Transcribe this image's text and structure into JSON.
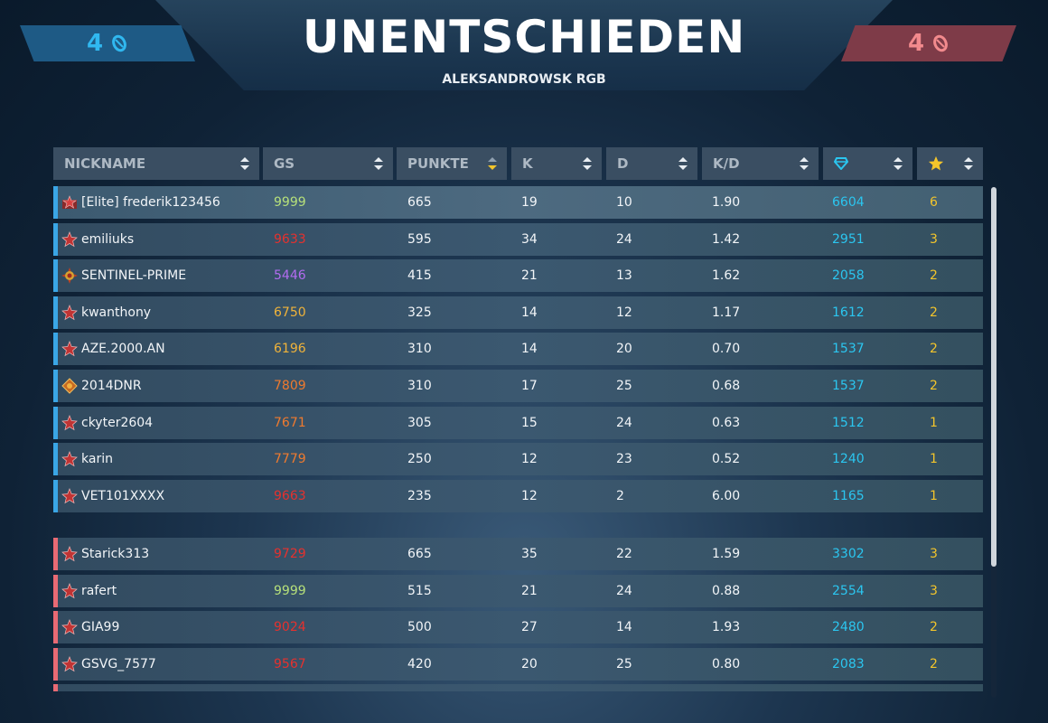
{
  "header": {
    "result": "UNENTSCHIEDEN",
    "map": "ALEKSANDROWSK RGB"
  },
  "score": {
    "blue": "4",
    "red": "4",
    "blue_color": "#30b8f0",
    "red_color": "#f28a8d",
    "icon": "flag-token-icon"
  },
  "columns": [
    {
      "label": "NICKNAME",
      "sort": "both"
    },
    {
      "label": "GS",
      "sort": "both"
    },
    {
      "label": "PUNKTE",
      "sort": "desc-active"
    },
    {
      "label": "K",
      "sort": "both"
    },
    {
      "label": "D",
      "sort": "both"
    },
    {
      "label": "K/D",
      "sort": "both"
    },
    {
      "label": "",
      "icon": "crystal-icon",
      "sort": "both"
    },
    {
      "label": "",
      "icon": "star-icon",
      "sort": "both"
    }
  ],
  "team_blue": [
    {
      "rank_icon": "rank-elite-icon",
      "nick": "[Elite] frederik123456",
      "gs": "9999",
      "gs_color": "#b6e07a",
      "points": "665",
      "k": "19",
      "d": "10",
      "kd": "1.90",
      "crystals": "6604",
      "stars": "6"
    },
    {
      "rank_icon": "rank-star-icon",
      "nick": "emiliuks",
      "gs": "9633",
      "gs_color": "#e5312e",
      "points": "595",
      "k": "34",
      "d": "24",
      "kd": "1.42",
      "crystals": "2951",
      "stars": "3"
    },
    {
      "rank_icon": "rank-sun-icon",
      "nick": "SENTINEL-PRIME",
      "gs": "5446",
      "gs_color": "#b26cf0",
      "points": "415",
      "k": "21",
      "d": "13",
      "kd": "1.62",
      "crystals": "2058",
      "stars": "2"
    },
    {
      "rank_icon": "rank-star-icon",
      "nick": "kwanthony",
      "gs": "6750",
      "gs_color": "#f0b33a",
      "points": "325",
      "k": "14",
      "d": "12",
      "kd": "1.17",
      "crystals": "1612",
      "stars": "2"
    },
    {
      "rank_icon": "rank-star-icon",
      "nick": "AZE.2000.AN",
      "gs": "6196",
      "gs_color": "#f0b33a",
      "points": "310",
      "k": "14",
      "d": "20",
      "kd": "0.70",
      "crystals": "1537",
      "stars": "2"
    },
    {
      "rank_icon": "rank-diamond-icon",
      "nick": "2014DNR",
      "gs": "7809",
      "gs_color": "#ef7a2e",
      "points": "310",
      "k": "17",
      "d": "25",
      "kd": "0.68",
      "crystals": "1537",
      "stars": "2"
    },
    {
      "rank_icon": "rank-star-icon",
      "nick": "ckyter2604",
      "gs": "7671",
      "gs_color": "#ef7a2e",
      "points": "305",
      "k": "15",
      "d": "24",
      "kd": "0.63",
      "crystals": "1512",
      "stars": "1"
    },
    {
      "rank_icon": "rank-star-icon",
      "nick": "karin",
      "gs": "7779",
      "gs_color": "#ef7a2e",
      "points": "250",
      "k": "12",
      "d": "23",
      "kd": "0.52",
      "crystals": "1240",
      "stars": "1"
    },
    {
      "rank_icon": "rank-star-icon",
      "nick": "VET101XXXX",
      "gs": "9663",
      "gs_color": "#e5312e",
      "points": "235",
      "k": "12",
      "d": "2",
      "kd": "6.00",
      "crystals": "1165",
      "stars": "1"
    }
  ],
  "team_red": [
    {
      "rank_icon": "rank-star-icon",
      "nick": "Starick313",
      "gs": "9729",
      "gs_color": "#e5312e",
      "points": "665",
      "k": "35",
      "d": "22",
      "kd": "1.59",
      "crystals": "3302",
      "stars": "3"
    },
    {
      "rank_icon": "rank-star-icon",
      "nick": "rafert",
      "gs": "9999",
      "gs_color": "#b6e07a",
      "points": "515",
      "k": "21",
      "d": "24",
      "kd": "0.88",
      "crystals": "2554",
      "stars": "3"
    },
    {
      "rank_icon": "rank-star-icon",
      "nick": "GIA99",
      "gs": "9024",
      "gs_color": "#e5312e",
      "points": "500",
      "k": "27",
      "d": "14",
      "kd": "1.93",
      "crystals": "2480",
      "stars": "2"
    },
    {
      "rank_icon": "rank-star-icon",
      "nick": "GSVG_7577",
      "gs": "9567",
      "gs_color": "#e5312e",
      "points": "420",
      "k": "20",
      "d": "25",
      "kd": "0.80",
      "crystals": "2083",
      "stars": "2"
    }
  ],
  "colors": {
    "crystals": "#2bc6f0",
    "stars": "#f3c52b",
    "team_blue": "#3aa6e6",
    "team_red": "#e86a74"
  }
}
